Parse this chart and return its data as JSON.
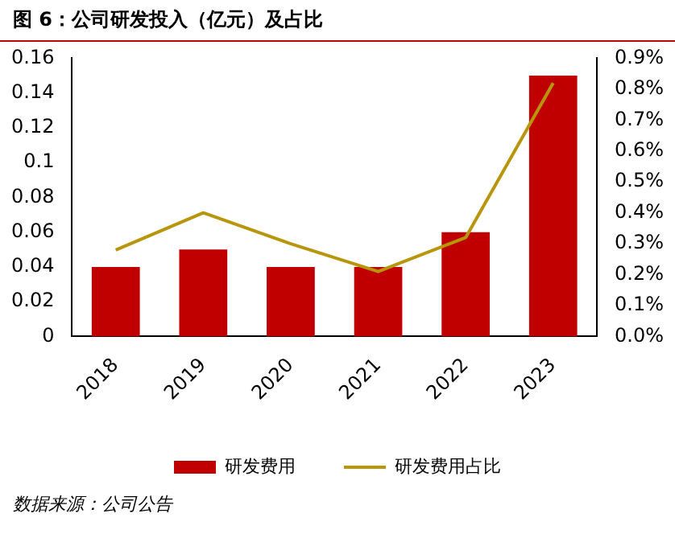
{
  "chart_data": {
    "type": "bar",
    "title": "图 6：公司研发投入（亿元）及占比",
    "categories": [
      "2018",
      "2019",
      "2020",
      "2021",
      "2022",
      "2023"
    ],
    "series": [
      {
        "name": "研发费用",
        "color": "#c00000",
        "values": [
          0.04,
          0.05,
          0.04,
          0.04,
          0.06,
          0.15
        ]
      },
      {
        "name": "研发费用占比",
        "type": "line",
        "axis": "y2",
        "color": "#b8960c",
        "values": [
          0.28,
          0.4,
          0.3,
          0.21,
          0.32,
          0.82
        ]
      }
    ],
    "ylim": [
      0,
      0.16
    ],
    "yticks": [
      0,
      0.02,
      0.04,
      0.06,
      0.08,
      0.1,
      0.12,
      0.14,
      0.16
    ],
    "y2lim": [
      0,
      0.9
    ],
    "y2ticks": [
      {
        "value": 0,
        "label": "0.0%"
      },
      {
        "value": 0.1,
        "label": "0.1%"
      },
      {
        "value": 0.2,
        "label": "0.2%"
      },
      {
        "value": 0.3,
        "label": "0.3%"
      },
      {
        "value": 0.4,
        "label": "0.4%"
      },
      {
        "value": 0.5,
        "label": "0.5%"
      },
      {
        "value": 0.6,
        "label": "0.6%"
      },
      {
        "value": 0.7,
        "label": "0.7%"
      },
      {
        "value": 0.8,
        "label": "0.8%"
      },
      {
        "value": 0.9,
        "label": "0.9%"
      }
    ],
    "grid": false,
    "legend": "bottom",
    "annotations": [
      "数据来源：公司公告"
    ]
  }
}
